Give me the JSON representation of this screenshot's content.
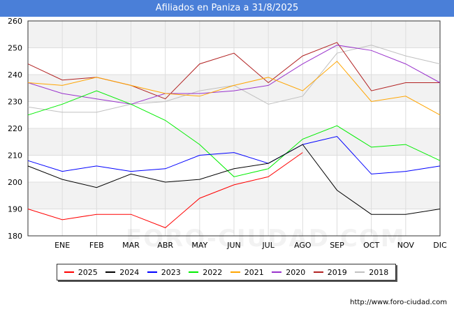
{
  "header": {
    "title": "Afiliados en Paniza a 31/8/2025"
  },
  "footer": {
    "source": "http://www.foro-ciudad.com"
  },
  "watermark": "FORO-CIUDAD.COM",
  "colors": {
    "title_bar": "#4a7fd8",
    "grid": "#dddddd",
    "band": "#f2f2f2"
  },
  "chart_data": {
    "type": "line",
    "title": "Afiliados en Paniza a 31/8/2025",
    "categories": [
      "",
      "ENE",
      "FEB",
      "MAR",
      "ABR",
      "MAY",
      "JUN",
      "JUL",
      "AGO",
      "SEP",
      "OCT",
      "NOV",
      "DIC"
    ],
    "ylim": [
      180,
      260
    ],
    "yticks": [
      180,
      190,
      200,
      210,
      220,
      230,
      240,
      250,
      260
    ],
    "grid": true,
    "legend_position": "bottom",
    "series": [
      {
        "name": "2025",
        "color": "#ff0000",
        "values": [
          190,
          186,
          188,
          188,
          183,
          194,
          199,
          202,
          211,
          null,
          null,
          null,
          null
        ]
      },
      {
        "name": "2024",
        "color": "#000000",
        "values": [
          206,
          201,
          198,
          203,
          200,
          201,
          205,
          207,
          214,
          197,
          188,
          188,
          190
        ]
      },
      {
        "name": "2023",
        "color": "#0000ff",
        "values": [
          208,
          204,
          206,
          204,
          205,
          210,
          211,
          207,
          214,
          217,
          203,
          204,
          206
        ]
      },
      {
        "name": "2022",
        "color": "#00ee00",
        "values": [
          225,
          229,
          234,
          229,
          223,
          214,
          202,
          205,
          216,
          221,
          213,
          214,
          208
        ]
      },
      {
        "name": "2021",
        "color": "#ffa500",
        "values": [
          237,
          236,
          239,
          236,
          233,
          232,
          236,
          239,
          234,
          245,
          230,
          232,
          225
        ]
      },
      {
        "name": "2020",
        "color": "#9932cc",
        "values": [
          237,
          233,
          231,
          229,
          233,
          233,
          234,
          236,
          244,
          251,
          249,
          244,
          237
        ]
      },
      {
        "name": "2019",
        "color": "#b22222",
        "values": [
          244,
          238,
          239,
          236,
          231,
          244,
          248,
          237,
          247,
          252,
          234,
          237,
          237
        ]
      },
      {
        "name": "2018",
        "color": "#c0c0c0",
        "values": [
          228,
          226,
          226,
          229,
          230,
          234,
          236,
          229,
          232,
          248,
          251,
          247,
          244
        ]
      }
    ]
  }
}
